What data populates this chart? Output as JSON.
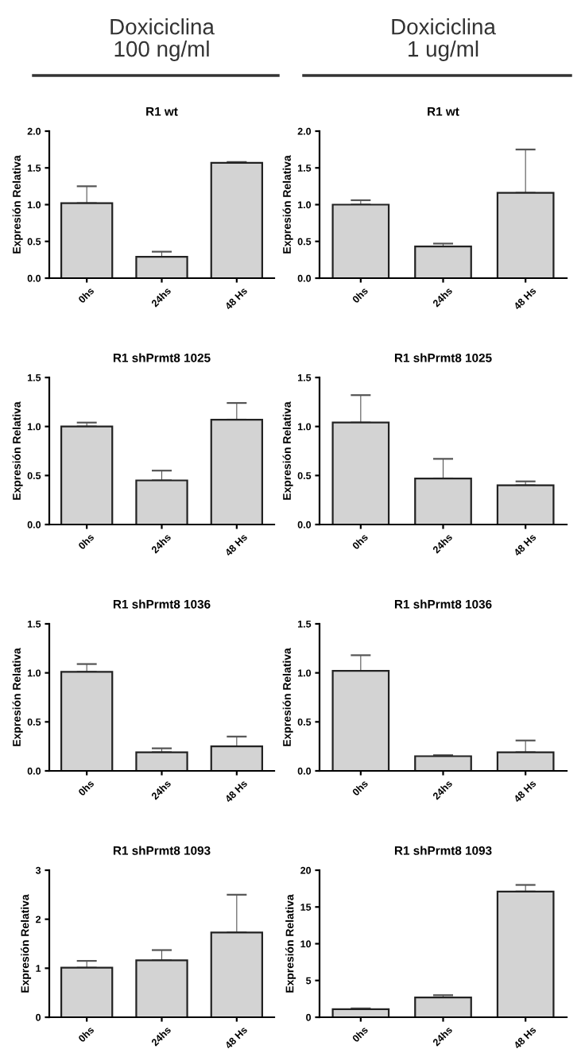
{
  "chart_data": [
    {
      "type": "bar",
      "title": "R1 wt",
      "annotations": [
        "Doxiciclina\n100 ng/ml"
      ],
      "ylabel": "Expresión Relativa",
      "categories": [
        "0hs",
        "24hs",
        "48 Hs"
      ],
      "values": [
        1.02,
        0.29,
        1.57
      ],
      "errors": [
        [
          1.02,
          1.25
        ],
        [
          0.29,
          0.36
        ],
        [
          1.57,
          1.58
        ]
      ],
      "color": "#d3d3d3",
      "ylim": [
        0,
        2
      ],
      "yticks": [
        {
          "value": 0,
          "label": "0.0"
        },
        {
          "value": 0.5,
          "label": "0.5"
        },
        {
          "value": 1,
          "label": "1.0"
        },
        {
          "value": 1.5,
          "label": "1.5"
        },
        {
          "value": 2,
          "label": "2.0"
        }
      ]
    },
    {
      "type": "bar",
      "title": "R1 wt",
      "annotations": [
        "Doxiciclina\n1 ug/ml"
      ],
      "ylabel": "Expresión Relativa",
      "categories": [
        "0hs",
        "24hs",
        "48 Hs"
      ],
      "values": [
        1.0,
        0.43,
        1.16
      ],
      "errors": [
        [
          1.0,
          1.06
        ],
        [
          0.43,
          0.47
        ],
        [
          1.16,
          1.75
        ]
      ],
      "color": "#d3d3d3",
      "ylim": [
        0,
        2
      ],
      "yticks": [
        {
          "value": 0,
          "label": "0.0"
        },
        {
          "value": 0.5,
          "label": "0.5"
        },
        {
          "value": 1,
          "label": "1.0"
        },
        {
          "value": 1.5,
          "label": "1.5"
        },
        {
          "value": 2,
          "label": "2.0"
        }
      ]
    },
    {
      "type": "bar",
      "title": "R1 shPrmt8 1025",
      "ylabel": "Expresión Relativa",
      "categories": [
        "0hs",
        "24hs",
        "48 Hs"
      ],
      "values": [
        1.0,
        0.45,
        1.07
      ],
      "errors": [
        [
          1.0,
          1.04
        ],
        [
          0.45,
          0.55
        ],
        [
          1.07,
          1.24
        ]
      ],
      "color": "#d3d3d3",
      "ylim": [
        0,
        1.5
      ],
      "yticks": [
        {
          "value": 0,
          "label": "0.0"
        },
        {
          "value": 0.5,
          "label": "0.5"
        },
        {
          "value": 1,
          "label": "1.0"
        },
        {
          "value": 1.5,
          "label": "1.5"
        }
      ]
    },
    {
      "type": "bar",
      "title": "R1 shPrmt8 1025",
      "ylabel": "Expresión Relativa",
      "categories": [
        "0hs",
        "24hs",
        "48 Hs"
      ],
      "values": [
        1.04,
        0.47,
        0.4
      ],
      "errors": [
        [
          1.04,
          1.32
        ],
        [
          0.47,
          0.67
        ],
        [
          0.4,
          0.44
        ]
      ],
      "color": "#d3d3d3",
      "ylim": [
        0,
        1.5
      ],
      "yticks": [
        {
          "value": 0,
          "label": "0.0"
        },
        {
          "value": 0.5,
          "label": "0.5"
        },
        {
          "value": 1,
          "label": "1.0"
        },
        {
          "value": 1.5,
          "label": "1.5"
        }
      ]
    },
    {
      "type": "bar",
      "title": "R1 shPrmt8 1036",
      "ylabel": "Expresión Relativa",
      "categories": [
        "0hs",
        "24hs",
        "48 Hs"
      ],
      "values": [
        1.01,
        0.19,
        0.25
      ],
      "errors": [
        [
          1.01,
          1.09
        ],
        [
          0.19,
          0.23
        ],
        [
          0.25,
          0.35
        ]
      ],
      "color": "#d3d3d3",
      "ylim": [
        0,
        1.5
      ],
      "yticks": [
        {
          "value": 0,
          "label": "0.0"
        },
        {
          "value": 0.5,
          "label": "0.5"
        },
        {
          "value": 1,
          "label": "1.0"
        },
        {
          "value": 1.5,
          "label": "1.5"
        }
      ]
    },
    {
      "type": "bar",
      "title": "R1 shPrmt8 1036",
      "ylabel": "Expresión Relativa",
      "categories": [
        "0hs",
        "24hs",
        "48 Hs"
      ],
      "values": [
        1.02,
        0.15,
        0.19
      ],
      "errors": [
        [
          1.02,
          1.18
        ],
        [
          0.15,
          0.16
        ],
        [
          0.19,
          0.31
        ]
      ],
      "color": "#d3d3d3",
      "ylim": [
        0,
        1.5
      ],
      "yticks": [
        {
          "value": 0,
          "label": "0.0"
        },
        {
          "value": 0.5,
          "label": "0.5"
        },
        {
          "value": 1,
          "label": "1.0"
        },
        {
          "value": 1.5,
          "label": "1.5"
        }
      ]
    },
    {
      "type": "bar",
      "title": "R1 shPrmt8 1093",
      "ylabel": "Expresión Relativa",
      "categories": [
        "0hs",
        "24hs",
        "48 Hs"
      ],
      "values": [
        1.01,
        1.16,
        1.73
      ],
      "errors": [
        [
          1.01,
          1.15
        ],
        [
          1.16,
          1.37
        ],
        [
          1.73,
          2.5
        ]
      ],
      "color": "#d3d3d3",
      "ylim": [
        0,
        3
      ],
      "yticks": [
        0,
        1,
        2,
        3
      ]
    },
    {
      "type": "bar",
      "title": "R1 shPrmt8 1093",
      "ylabel": "Expresión Relativa",
      "categories": [
        "0hs",
        "24hs",
        "48 Hs"
      ],
      "values": [
        1.1,
        2.7,
        17.1
      ],
      "errors": [
        [
          1.1,
          1.2
        ],
        [
          2.7,
          3.0
        ],
        [
          17.1,
          18.0
        ]
      ],
      "color": "#d3d3d3",
      "ylim": [
        0,
        20
      ],
      "yticks": [
        0,
        5,
        10,
        15,
        20
      ]
    }
  ]
}
